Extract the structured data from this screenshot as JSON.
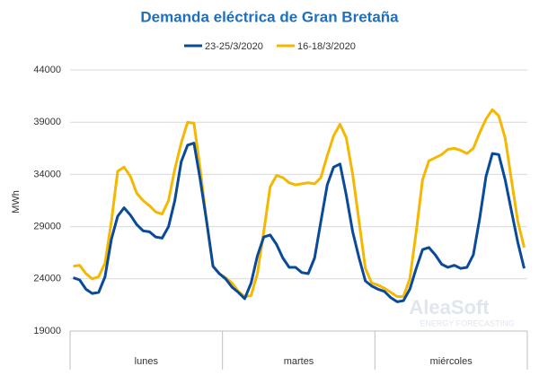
{
  "chart_data": {
    "type": "line",
    "title": "Demanda eléctrica de Gran Bretaña",
    "y_label": "MWh",
    "categories": [
      "lunes",
      "martes",
      "miércoles"
    ],
    "series": [
      {
        "name": "23-25/3/2020",
        "color": "#0a4a9a",
        "values": [
          [
            24100,
            23900,
            23000,
            22600,
            22700,
            24200,
            27800,
            30000,
            30800,
            30100,
            29200,
            28600,
            28500,
            28000,
            27900,
            29000,
            31500,
            35200,
            36800,
            37000,
            33500,
            29500,
            25200,
            24500
          ],
          [
            24000,
            23200,
            22700,
            22100,
            23600,
            26200,
            28000,
            28200,
            27300,
            26000,
            25100,
            25100,
            24600,
            24500,
            26000,
            29500,
            33000,
            34700,
            35000,
            32000,
            28500,
            26000,
            23800,
            23300
          ],
          [
            23000,
            22800,
            22200,
            21800,
            21900,
            23000,
            25000,
            26800,
            27000,
            26300,
            25400,
            25100,
            25300,
            25000,
            25100,
            26300,
            29800,
            33800,
            36000,
            35900,
            33500,
            30500,
            27500,
            25000
          ]
        ]
      },
      {
        "name": "16-18/3/2020",
        "color": "#f5b800",
        "values": [
          [
            25200,
            25300,
            24500,
            24000,
            24200,
            25500,
            29500,
            34300,
            34700,
            33800,
            32200,
            31500,
            31000,
            30400,
            30200,
            31500,
            34500,
            37000,
            39000,
            38900,
            34500,
            29500,
            25200,
            24500
          ],
          [
            24100,
            23600,
            22800,
            22300,
            22400,
            24500,
            28500,
            32800,
            33900,
            33700,
            33200,
            33000,
            33100,
            33200,
            33100,
            33700,
            35800,
            37700,
            38800,
            37500,
            34000,
            29500,
            25000,
            23600
          ],
          [
            23400,
            23100,
            22700,
            22300,
            22300,
            24000,
            28500,
            33500,
            35300,
            35600,
            35900,
            36400,
            36500,
            36300,
            36000,
            36500,
            38000,
            39300,
            40200,
            39600,
            37500,
            33500,
            29500,
            27000
          ]
        ]
      }
    ],
    "ylim": [
      19000,
      44000
    ],
    "yticks": [
      19000,
      24000,
      29000,
      34000,
      39000,
      44000
    ],
    "grid": true,
    "legend": "top",
    "watermark": {
      "brand": "AleaSoft",
      "tagline": "ENERGY FORECASTING"
    }
  }
}
